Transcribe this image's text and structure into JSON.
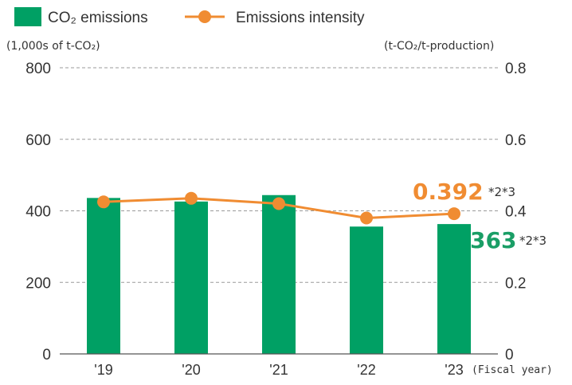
{
  "chart_data": {
    "type": "bar+line",
    "categories": [
      "'19",
      "'20",
      "'21",
      "'22",
      "'23"
    ],
    "series": [
      {
        "name": "CO₂ emissions",
        "type": "bar",
        "axis": "left",
        "values": [
          436,
          426,
          444,
          356,
          363
        ],
        "color": "#00A064"
      },
      {
        "name": "Emissions intensity",
        "type": "line",
        "axis": "right",
        "values": [
          0.425,
          0.435,
          0.42,
          0.38,
          0.392
        ],
        "color": "#F08C32"
      }
    ],
    "y_left": {
      "label": "(1,000s of t-CO₂)",
      "ticks": [
        "0",
        "200",
        "400",
        "600",
        "800"
      ],
      "range": [
        0,
        800
      ]
    },
    "y_right": {
      "label": "(t-CO₂/t-production)",
      "ticks": [
        "0",
        "0.2",
        "0.4",
        "0.6",
        "0.8"
      ],
      "range": [
        0,
        0.8
      ]
    },
    "x_label": "(Fiscal year)",
    "grid": "dashed horizontal",
    "legend_position": "top-left",
    "annotations": [
      {
        "text": "0.392",
        "note": "*2*3",
        "series": "Emissions intensity",
        "color": "#F08C32"
      },
      {
        "text": "363",
        "note": "*2*3",
        "series": "CO₂ emissions",
        "color": "#1A9E66"
      }
    ]
  }
}
